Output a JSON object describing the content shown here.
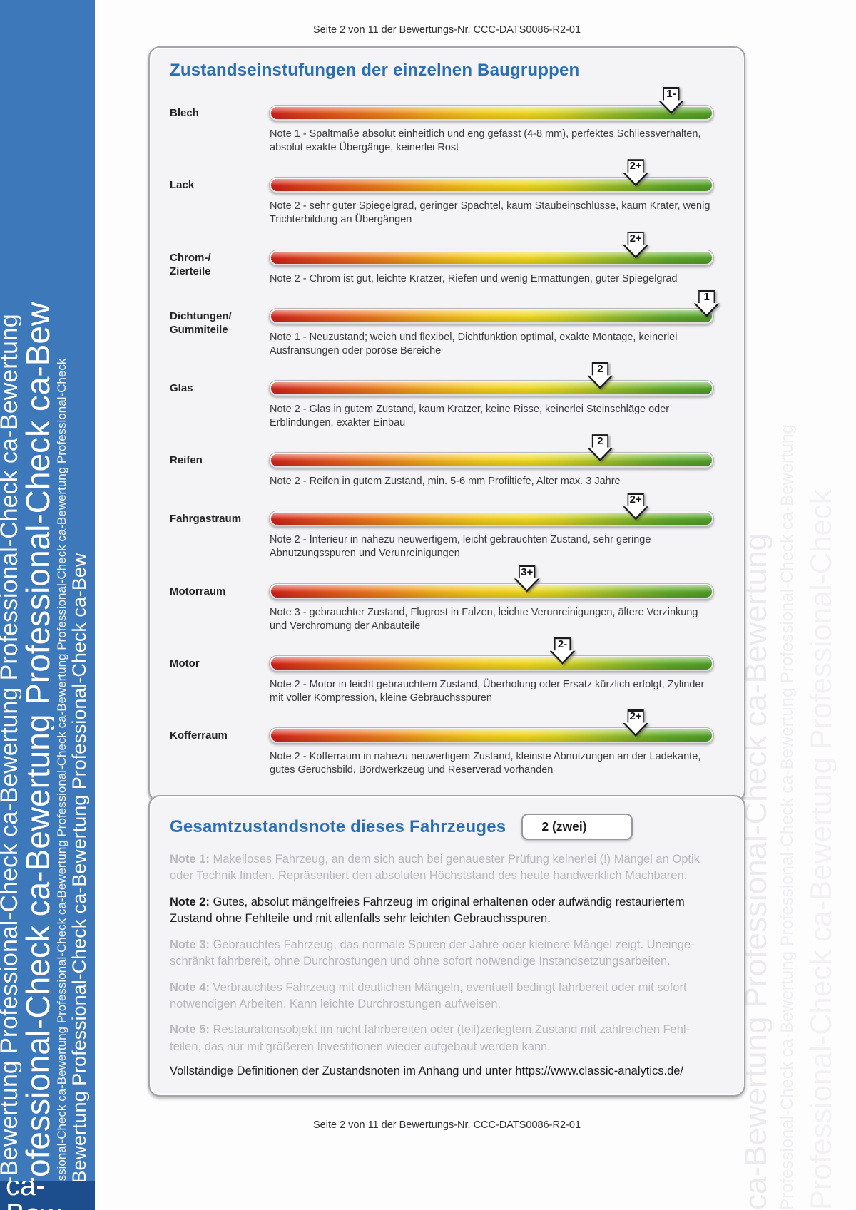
{
  "page": {
    "header": "Seite 2 von 11 der Bewertungs-Nr. CCC-DATS0086-R2-01",
    "footer": "Seite 2 von 11 der Bewertungs-Nr. CCC-DATS0086-R2-01"
  },
  "watermark": {
    "phrase_primary": "Professional-Check",
    "phrase_secondary": "ca-Bewertung",
    "sidebar_color": "#3c78ba",
    "left_columns": [
      "ca-Bewertung Professional-Check ca-Bewertung Professional-Check ca-Bewertung",
      "Professional-Check ca-Bewertung Professional-Check ca-Bew",
      "Professional-Check ca-Bewertung Professional-Check ca-Bewertung Professional-Check ca-Bewertung Professional-Check ca-Bewertung Professional-Check",
      "ca-Bewertung Professional-Check ca-Bewertung Professional-Check ca-Bew"
    ],
    "right_columns": [
      "ca-Bewertung Professional-Check ca-Bewertung",
      "Professional-Check ca-Bewertung Professional-Check ca-Bewertung Professional-Check ca-Bewertung",
      "Professional-Check ca-Bewertung Professional-Check"
    ],
    "bottom_fragment": "ca-Bew"
  },
  "assemblies": {
    "title": "Zustandseinstufungen der einzelnen Baugruppen",
    "title_color": "#2a6fb4",
    "scale_left_color": "#cf2018",
    "scale_right_color": "#529f2a",
    "rows": [
      {
        "label": "Blech",
        "grade": "1-",
        "position_pct": 90.5,
        "note": "Note 1 - Spaltmaße absolut einheitlich und eng gefasst (4-8 mm), perfektes Schliessverhalten, absolut exakte Übergänge, keinerlei Rost"
      },
      {
        "label": "Lack",
        "grade": "2+",
        "position_pct": 82.5,
        "note": "Note 2 - sehr guter Spiegelgrad, geringer Spachtel, kaum Staubeinschlüsse, kaum Krater, wenig Trichterbildung an Übergängen"
      },
      {
        "label": "Chrom-/\nZierteile",
        "grade": "2+",
        "position_pct": 82.5,
        "note": "Note 2 - Chrom ist gut, leichte Kratzer, Riefen und wenig Ermattungen, guter Spiegelgrad"
      },
      {
        "label": "Dichtungen/\nGummiteile",
        "grade": "1",
        "position_pct": 98.5,
        "note": "Note 1 - Neuzustand; weich und flexibel, Dichtfunktion optimal, exakte Montage, keinerlei Ausfransungen oder poröse Bereiche"
      },
      {
        "label": "Glas",
        "grade": "2",
        "position_pct": 74.5,
        "note": "Note 2 - Glas in gutem Zustand, kaum Kratzer, keine Risse, keinerlei Steinschläge oder Erblindungen, exakter Einbau"
      },
      {
        "label": "Reifen",
        "grade": "2",
        "position_pct": 74.5,
        "note": "Note 2 - Reifen in gutem Zustand, min. 5-6 mm Profiltiefe, Alter max. 3 Jahre"
      },
      {
        "label": "Fahrgastraum",
        "grade": "2+",
        "position_pct": 82.5,
        "note": "Note 2 - Interieur in nahezu neuwertigem, leicht gebrauchten Zustand, sehr geringe Abnutzungsspuren und Verunreinigungen"
      },
      {
        "label": "Motorraum",
        "grade": "3+",
        "position_pct": 58,
        "note": "Note 3 - gebrauchter Zustand, Flugrost in Falzen, leichte Verunreinigungen, ältere Verzinkung und Verchromung der Anbauteile"
      },
      {
        "label": "Motor",
        "grade": "2-",
        "position_pct": 66,
        "note": "Note 2 - Motor in leicht gebrauchtem Zustand, Überholung oder Ersatz kürzlich erfolgt, Zylinder mit voller Kompression, kleine Gebrauchsspuren"
      },
      {
        "label": "Kofferraum",
        "grade": "2+",
        "position_pct": 82.5,
        "note": "Note 2 - Kofferraum in nahezu neuwertigem Zustand, kleinste Abnutzungen an der Ladekante, gutes Geruchsbild, Bordwerkzeug und Reserverad vorhanden"
      }
    ]
  },
  "overall": {
    "title": "Gesamtzustandsnote dieses Fahrzeuges",
    "grade_value": "2 (zwei)",
    "definitions": [
      {
        "prefix": "Note 1:",
        "active": false,
        "text": "Makelloses Fahrzeug, an dem sich auch bei genauester Prüfung keinerlei (!) Mängel an Optik oder Technik finden. Repräsentiert den absoluten Höchststand des heute handwerklich Machbaren."
      },
      {
        "prefix": "Note 2:",
        "active": true,
        "text": "Gutes, absolut mängelfreies Fahrzeug im original erhaltenen oder aufwändig restauriertem Zustand ohne Fehlteile und mit allenfalls sehr leichten Gebrauchsspuren."
      },
      {
        "prefix": "Note 3:",
        "active": false,
        "text": "Gebrauchtes Fahrzeug, das normale Spuren der Jahre oder kleinere Mängel zeigt. Uneinge-schränkt fahrbereit, ohne Durchrostungen und ohne sofort notwendige Instandsetzungsarbeiten."
      },
      {
        "prefix": "Note 4:",
        "active": false,
        "text": "Verbrauchtes Fahrzeug mit deutlichen Mängeln, eventuell bedingt fahrbereit oder mit sofort notwendigen Arbeiten. Kann leichte Durchrostungen aufweisen."
      },
      {
        "prefix": "Note 5:",
        "active": false,
        "text": "Restaurationsobjekt im nicht fahrbereiten oder (teil)zerlegtem Zustand mit zahlreichen Fehl-teilen, das nur mit größeren Investitionen wieder aufgebaut werden kann."
      }
    ],
    "footnote_text": "Vollständige Definitionen der Zustandsnoten im Anhang und unter",
    "footnote_url": "https://www.classic-analytics.de/"
  }
}
